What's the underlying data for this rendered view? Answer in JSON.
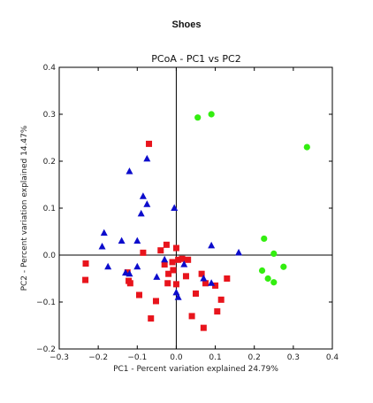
{
  "figure_title": "Shoes",
  "chart_data": {
    "type": "scatter",
    "title": "PCoA - PC1 vs PC2",
    "xlabel": "PC1 - Percent variation explained 24.79%",
    "ylabel": "PC2 - Percent variation explained 14.47%",
    "xlim": [
      -0.3,
      0.4
    ],
    "ylim": [
      -0.2,
      0.4
    ],
    "xticks": [
      "−0.3",
      "−0.2",
      "−0.1",
      "0.0",
      "0.1",
      "0.2",
      "0.3",
      "0.4"
    ],
    "yticks": [
      "−0.2",
      "−0.1",
      "0.0",
      "0.1",
      "0.2",
      "0.3",
      "0.4"
    ],
    "reference_lines": {
      "x": 0,
      "y": 0
    },
    "series": [
      {
        "marker": "square",
        "color": "#e8141c",
        "points": [
          [
            -0.07,
            0.237
          ],
          [
            -0.232,
            -0.018
          ],
          [
            -0.233,
            -0.053
          ],
          [
            -0.125,
            -0.037
          ],
          [
            -0.122,
            -0.055
          ],
          [
            -0.118,
            -0.06
          ],
          [
            -0.095,
            -0.085
          ],
          [
            -0.085,
            0.005
          ],
          [
            -0.065,
            -0.135
          ],
          [
            -0.052,
            -0.098
          ],
          [
            -0.04,
            0.01
          ],
          [
            -0.03,
            -0.02
          ],
          [
            -0.025,
            0.022
          ],
          [
            -0.022,
            -0.06
          ],
          [
            -0.02,
            -0.04
          ],
          [
            -0.01,
            -0.015
          ],
          [
            -0.008,
            -0.032
          ],
          [
            0.0,
            0.015
          ],
          [
            0.0,
            -0.062
          ],
          [
            0.005,
            -0.01
          ],
          [
            0.015,
            -0.008
          ],
          [
            0.025,
            -0.045
          ],
          [
            0.03,
            -0.01
          ],
          [
            0.04,
            -0.13
          ],
          [
            0.05,
            -0.082
          ],
          [
            0.065,
            -0.04
          ],
          [
            0.07,
            -0.155
          ],
          [
            0.075,
            -0.06
          ],
          [
            0.1,
            -0.065
          ],
          [
            0.105,
            -0.12
          ],
          [
            0.115,
            -0.095
          ],
          [
            0.13,
            -0.05
          ]
        ]
      },
      {
        "marker": "triangle",
        "color": "#0c0ccc",
        "points": [
          [
            -0.075,
            0.205
          ],
          [
            -0.12,
            0.178
          ],
          [
            -0.085,
            0.125
          ],
          [
            -0.075,
            0.108
          ],
          [
            -0.09,
            0.088
          ],
          [
            -0.185,
            0.047
          ],
          [
            -0.19,
            0.018
          ],
          [
            -0.14,
            0.03
          ],
          [
            -0.1,
            0.03
          ],
          [
            -0.005,
            0.1
          ],
          [
            -0.175,
            -0.025
          ],
          [
            -0.13,
            -0.038
          ],
          [
            -0.12,
            -0.04
          ],
          [
            -0.1,
            -0.025
          ],
          [
            -0.05,
            -0.047
          ],
          [
            -0.03,
            -0.01
          ],
          [
            0.0,
            -0.08
          ],
          [
            0.005,
            -0.09
          ],
          [
            0.02,
            -0.02
          ],
          [
            0.07,
            -0.05
          ],
          [
            0.09,
            -0.06
          ],
          [
            0.09,
            0.02
          ],
          [
            0.16,
            0.005
          ]
        ]
      },
      {
        "marker": "circle",
        "color": "#33ee10",
        "points": [
          [
            0.055,
            0.293
          ],
          [
            0.09,
            0.3
          ],
          [
            0.335,
            0.23
          ],
          [
            0.225,
            0.035
          ],
          [
            0.25,
            0.003
          ],
          [
            0.275,
            -0.025
          ],
          [
            0.22,
            -0.033
          ],
          [
            0.235,
            -0.05
          ],
          [
            0.25,
            -0.058
          ]
        ]
      }
    ]
  }
}
